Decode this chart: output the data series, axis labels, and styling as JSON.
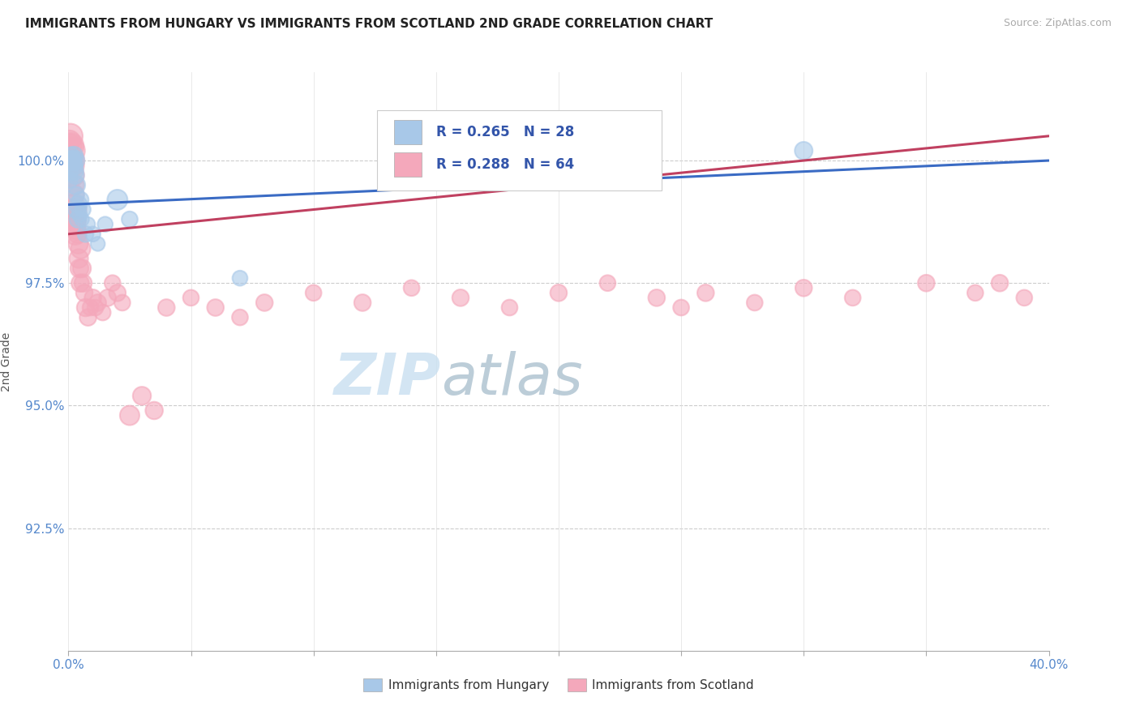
{
  "title": "IMMIGRANTS FROM HUNGARY VS IMMIGRANTS FROM SCOTLAND 2ND GRADE CORRELATION CHART",
  "source": "Source: ZipAtlas.com",
  "ylabel": "2nd Grade",
  "xlim": [
    0.0,
    40.0
  ],
  "ylim": [
    90.0,
    101.8
  ],
  "yticks": [
    92.5,
    95.0,
    97.5,
    100.0
  ],
  "ytick_labels": [
    "92.5%",
    "95.0%",
    "97.5%",
    "100.0%"
  ],
  "hungary_color": "#a8c8e8",
  "scotland_color": "#f4a8bb",
  "hungary_R": 0.265,
  "hungary_N": 28,
  "scotland_R": 0.288,
  "scotland_N": 64,
  "watermark_zip": "ZIP",
  "watermark_atlas": "atlas",
  "background_color": "#ffffff",
  "hungary_x": [
    0.05,
    0.08,
    0.1,
    0.12,
    0.15,
    0.18,
    0.2,
    0.22,
    0.25,
    0.28,
    0.3,
    0.32,
    0.35,
    0.38,
    0.4,
    0.45,
    0.5,
    0.55,
    0.6,
    0.7,
    0.8,
    1.0,
    1.2,
    1.5,
    2.0,
    2.5,
    7.0,
    30.0
  ],
  "hungary_y": [
    99.6,
    99.8,
    100.1,
    100.0,
    99.9,
    100.0,
    99.8,
    100.1,
    100.0,
    99.7,
    99.5,
    99.3,
    99.0,
    98.8,
    99.1,
    98.9,
    99.2,
    98.8,
    99.0,
    98.5,
    98.7,
    98.5,
    98.3,
    98.7,
    99.2,
    98.8,
    97.6,
    100.2
  ],
  "hungary_sizes": [
    200,
    180,
    220,
    300,
    350,
    280,
    320,
    260,
    310,
    240,
    280,
    200,
    260,
    220,
    250,
    180,
    200,
    160,
    180,
    200,
    160,
    180,
    160,
    180,
    320,
    200,
    180,
    250
  ],
  "scotland_x": [
    0.03,
    0.05,
    0.07,
    0.08,
    0.1,
    0.12,
    0.14,
    0.15,
    0.17,
    0.18,
    0.2,
    0.22,
    0.24,
    0.25,
    0.27,
    0.28,
    0.3,
    0.32,
    0.35,
    0.38,
    0.4,
    0.42,
    0.45,
    0.48,
    0.5,
    0.55,
    0.6,
    0.65,
    0.7,
    0.8,
    0.9,
    1.0,
    1.1,
    1.2,
    1.4,
    1.6,
    1.8,
    2.0,
    2.2,
    2.5,
    3.0,
    3.5,
    4.0,
    5.0,
    6.0,
    7.0,
    8.0,
    10.0,
    12.0,
    14.0,
    16.0,
    18.0,
    20.0,
    22.0,
    24.0,
    25.0,
    26.0,
    28.0,
    30.0,
    32.0,
    35.0,
    37.0,
    38.0,
    39.0
  ],
  "scotland_y": [
    100.2,
    100.4,
    100.3,
    100.5,
    100.3,
    100.2,
    100.0,
    99.9,
    99.7,
    99.5,
    99.3,
    99.1,
    99.0,
    98.8,
    98.7,
    98.5,
    98.6,
    98.8,
    99.0,
    98.5,
    98.3,
    98.0,
    97.8,
    97.5,
    98.2,
    97.8,
    97.5,
    97.3,
    97.0,
    96.8,
    97.0,
    97.2,
    97.0,
    97.1,
    96.9,
    97.2,
    97.5,
    97.3,
    97.1,
    94.8,
    95.2,
    94.9,
    97.0,
    97.2,
    97.0,
    96.8,
    97.1,
    97.3,
    97.1,
    97.4,
    97.2,
    97.0,
    97.3,
    97.5,
    97.2,
    97.0,
    97.3,
    97.1,
    97.4,
    97.2,
    97.5,
    97.3,
    97.5,
    97.2
  ],
  "scotland_sizes": [
    280,
    350,
    420,
    480,
    520,
    580,
    500,
    450,
    420,
    380,
    360,
    340,
    360,
    380,
    340,
    360,
    320,
    300,
    280,
    260,
    300,
    280,
    260,
    240,
    300,
    260,
    240,
    220,
    240,
    220,
    200,
    220,
    200,
    220,
    200,
    220,
    200,
    220,
    200,
    300,
    260,
    240,
    220,
    200,
    220,
    200,
    220,
    200,
    220,
    200,
    220,
    200,
    220,
    200,
    220,
    200,
    220,
    200,
    220,
    200,
    220,
    200,
    220,
    200
  ],
  "trend_blue_x0": 0.0,
  "trend_blue_y0": 99.1,
  "trend_blue_x1": 40.0,
  "trend_blue_y1": 100.0,
  "trend_red_x0": 0.0,
  "trend_red_y0": 98.5,
  "trend_red_x1": 40.0,
  "trend_red_y1": 100.5
}
